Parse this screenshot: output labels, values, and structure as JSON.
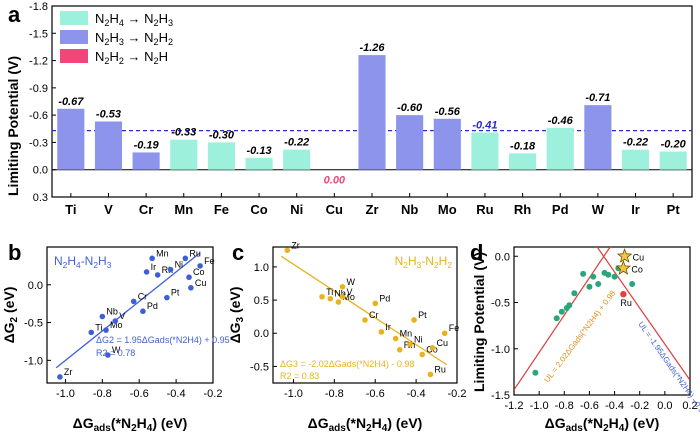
{
  "colors": {
    "n2h4_n2h3": "#9cf0dc",
    "n2h3_n2h2": "#8c94ec",
    "n2h2_n2h": "#f0467a",
    "ref_line": "#2a2acf",
    "panel_b": "#3f5fd6",
    "panel_c": "#e8b21c",
    "panel_d_point": "#2aa67a",
    "panel_d_line": "#e03c3c",
    "panel_d_star": "#f5c542"
  },
  "chart_data": [
    {
      "id": "a",
      "panel_label": "a",
      "type": "bar",
      "ylabel": "Limiting Potential (V)",
      "ylim": [
        0.3,
        -1.8
      ],
      "yticks": [
        0.3,
        0.0,
        -0.3,
        -0.6,
        -0.9,
        -1.2,
        -1.5,
        -1.8
      ],
      "ytick_labels": [
        "0.3",
        "0.0",
        "-0.3",
        "-0.6",
        "-0.9",
        "-1.2",
        "-1.5",
        "-1.8"
      ],
      "reference_line": -0.43,
      "legend": [
        {
          "text": "N2H4 → N2H3",
          "series": "n2h4_n2h3"
        },
        {
          "text": "N2H3 → N2H2",
          "series": "n2h3_n2h2"
        },
        {
          "text": "N2H2 → N2H",
          "series": "n2h2_n2h"
        }
      ],
      "categories": [
        "Ti",
        "V",
        "Cr",
        "Mn",
        "Fe",
        "Co",
        "Ni",
        "Cu",
        "Zr",
        "Nb",
        "Mo",
        "Ru",
        "Rh",
        "Pd",
        "W",
        "Ir",
        "Pt"
      ],
      "values": [
        -0.67,
        -0.53,
        -0.19,
        -0.33,
        -0.3,
        -0.13,
        -0.22,
        0.0,
        -1.26,
        -0.6,
        -0.56,
        -0.41,
        -0.18,
        -0.46,
        -0.71,
        -0.22,
        -0.2
      ],
      "value_labels": [
        "-0.67",
        "-0.53",
        "-0.19",
        "-0.33",
        "-0.30",
        "-0.13",
        "-0.22",
        "0.00",
        "-1.26",
        "-0.60",
        "-0.56",
        "-0.41",
        "-0.18",
        "-0.46",
        "-0.71",
        "-0.22",
        "-0.20"
      ],
      "bar_series": [
        "n2h3_n2h2",
        "n2h3_n2h2",
        "n2h3_n2h2",
        "n2h4_n2h3",
        "n2h4_n2h3",
        "n2h4_n2h3",
        "n2h4_n2h3",
        "n2h2_n2h",
        "n2h3_n2h2",
        "n2h3_n2h2",
        "n2h3_n2h2",
        "n2h4_n2h3",
        "n2h4_n2h3",
        "n2h4_n2h3",
        "n2h3_n2h2",
        "n2h4_n2h3",
        "n2h4_n2h3"
      ]
    },
    {
      "id": "b",
      "panel_label": "b",
      "type": "scatter",
      "title": "N2H4-N2H3",
      "xlabel": "ΔGads(*N2H4) (eV)",
      "ylabel": "ΔG2 (eV)",
      "xlim": [
        -1.1,
        -0.2
      ],
      "ylim": [
        -1.3,
        0.5
      ],
      "xticks": [
        -1.0,
        -0.8,
        -0.6,
        -0.4,
        -0.2
      ],
      "xtick_labels": [
        "-1.0",
        "-0.8",
        "-0.6",
        "-0.4",
        "-0.2"
      ],
      "yticks": [
        -1.0,
        -0.5,
        0.0
      ],
      "ytick_labels": [
        "-1.0",
        "-0.5",
        "0.0"
      ],
      "fit": {
        "slope": 1.95,
        "intercept": 0.95
      },
      "equation": "ΔG2 = 1.95ΔGads(*N2H4) + 0.95",
      "r2": "R2 = 0.78",
      "points": [
        {
          "label": "Zr",
          "x": -1.03,
          "y": -1.22
        },
        {
          "label": "Ti",
          "x": -0.86,
          "y": -0.63
        },
        {
          "label": "Nb",
          "x": -0.8,
          "y": -0.42
        },
        {
          "label": "Mo",
          "x": -0.78,
          "y": -0.6
        },
        {
          "label": "V",
          "x": -0.73,
          "y": -0.48
        },
        {
          "label": "W",
          "x": -0.77,
          "y": -0.93
        },
        {
          "label": "Cr",
          "x": -0.63,
          "y": -0.22
        },
        {
          "label": "Pd",
          "x": -0.58,
          "y": -0.35
        },
        {
          "label": "Ir",
          "x": -0.56,
          "y": 0.17
        },
        {
          "label": "Mn",
          "x": -0.53,
          "y": 0.35
        },
        {
          "label": "Rh",
          "x": -0.5,
          "y": 0.13
        },
        {
          "label": "Ni",
          "x": -0.43,
          "y": 0.2
        },
        {
          "label": "Pt",
          "x": -0.45,
          "y": -0.17
        },
        {
          "label": "Ru",
          "x": -0.35,
          "y": 0.35
        },
        {
          "label": "Co",
          "x": -0.33,
          "y": 0.1
        },
        {
          "label": "Fe",
          "x": -0.27,
          "y": 0.25
        },
        {
          "label": "Cu",
          "x": -0.32,
          "y": -0.04
        }
      ]
    },
    {
      "id": "c",
      "panel_label": "c",
      "type": "scatter",
      "title": "N2H3-N2H2",
      "xlabel": "ΔGads(*N2H4) (eV)",
      "ylabel": "ΔG3 (eV)",
      "xlim": [
        -1.1,
        -0.2
      ],
      "ylim": [
        -0.75,
        1.3
      ],
      "xticks": [
        -1.0,
        -0.8,
        -0.6,
        -0.4,
        -0.2
      ],
      "xtick_labels": [
        "-1.0",
        "-0.8",
        "-0.6",
        "-0.4",
        "-0.2"
      ],
      "yticks": [
        -0.5,
        0.0,
        0.5,
        1.0
      ],
      "ytick_labels": [
        "-0.5",
        "0.0",
        "0.5",
        "1.0"
      ],
      "fit": {
        "slope": -2.02,
        "intercept": -0.98
      },
      "equation": "ΔG3 = -2.02ΔGads(*N2H4) - 0.98",
      "r2": "R2 = 0.83",
      "points": [
        {
          "label": "Zr",
          "x": -1.03,
          "y": 1.25
        },
        {
          "label": "Ti",
          "x": -0.86,
          "y": 0.55
        },
        {
          "label": "Nb",
          "x": -0.82,
          "y": 0.52
        },
        {
          "label": "Mo",
          "x": -0.78,
          "y": 0.47
        },
        {
          "label": "V",
          "x": -0.76,
          "y": 0.55
        },
        {
          "label": "W",
          "x": -0.76,
          "y": 0.7
        },
        {
          "label": "Cr",
          "x": -0.65,
          "y": 0.2
        },
        {
          "label": "Pd",
          "x": -0.6,
          "y": 0.45
        },
        {
          "label": "Ir",
          "x": -0.57,
          "y": 0.02
        },
        {
          "label": "Mn",
          "x": -0.5,
          "y": -0.08
        },
        {
          "label": "Rh",
          "x": -0.48,
          "y": -0.25
        },
        {
          "label": "Ni",
          "x": -0.43,
          "y": -0.17
        },
        {
          "label": "Pt",
          "x": -0.41,
          "y": 0.2
        },
        {
          "label": "Co",
          "x": -0.37,
          "y": -0.32
        },
        {
          "label": "Cu",
          "x": -0.32,
          "y": -0.22
        },
        {
          "label": "Ru",
          "x": -0.33,
          "y": -0.62
        },
        {
          "label": "Fe",
          "x": -0.26,
          "y": 0.0
        }
      ]
    },
    {
      "id": "d",
      "panel_label": "d",
      "type": "scatter",
      "xlabel": "ΔGads(*N2H4) (eV)",
      "ylabel": "Limiting Potential (V)",
      "xlim": [
        -1.2,
        0.2
      ],
      "ylim": [
        -1.5,
        0.1
      ],
      "xticks": [
        -1.2,
        -1.0,
        -0.8,
        -0.6,
        -0.4,
        -0.2,
        0.0,
        0.2
      ],
      "xtick_labels": [
        "-1.2",
        "-1.0",
        "-0.8",
        "-0.6",
        "-0.4",
        "-0.2",
        "0.0",
        "0.2"
      ],
      "yticks": [
        0.0,
        -0.5,
        -1.0,
        -1.5
      ],
      "ytick_labels": [
        "0.0",
        "-0.5",
        "-1.0",
        "-1.5"
      ],
      "line_up": {
        "slope": 2.02,
        "intercept": 0.98,
        "label": "UL = 2.02ΔGads(*N2H4) + 0.98"
      },
      "line_down": {
        "slope": -1.95,
        "intercept": -0.95,
        "label": "UL = -1.95ΔGads(*N2H4) - 0.95"
      },
      "points": [
        {
          "x": -1.03,
          "y": -1.26
        },
        {
          "x": -0.86,
          "y": -0.67
        },
        {
          "x": -0.82,
          "y": -0.6
        },
        {
          "x": -0.78,
          "y": -0.56
        },
        {
          "x": -0.76,
          "y": -0.53
        },
        {
          "x": -0.72,
          "y": -0.4
        },
        {
          "x": -0.65,
          "y": -0.19
        },
        {
          "x": -0.6,
          "y": -0.33
        },
        {
          "x": -0.57,
          "y": -0.22
        },
        {
          "x": -0.53,
          "y": -0.3
        },
        {
          "x": -0.48,
          "y": -0.18
        },
        {
          "x": -0.45,
          "y": -0.2
        },
        {
          "x": -0.4,
          "y": -0.22
        },
        {
          "x": -0.37,
          "y": -0.13
        },
        {
          "x": -0.26,
          "y": -0.3
        }
      ],
      "highlight_stars": [
        {
          "label": "Cu",
          "x": -0.32,
          "y": 0.0
        },
        {
          "label": "Co",
          "x": -0.33,
          "y": -0.13
        }
      ],
      "highlight_ru": {
        "label": "Ru",
        "x": -0.33,
        "y": -0.41
      }
    }
  ]
}
